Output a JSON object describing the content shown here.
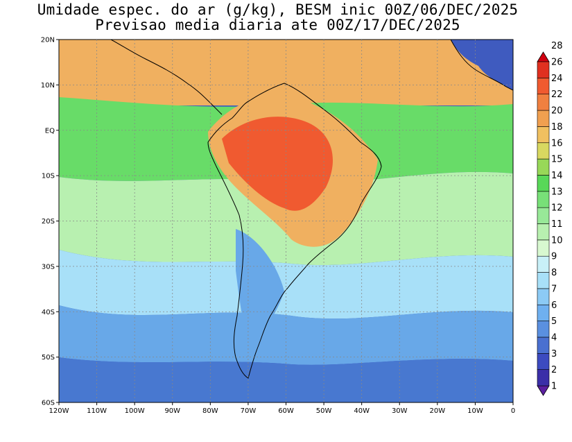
{
  "title_line1": "Umidade espec. do ar (g/kg), BESM inic 00Z/06/DEC/2025",
  "title_line2": "Previsao media diaria ate 00Z/17/DEC/2025",
  "lat_labels": [
    "20N",
    "10N",
    "EQ",
    "10S",
    "20S",
    "30S",
    "40S",
    "50S",
    "60S"
  ],
  "lon_labels": [
    "120W",
    "110W",
    "100W",
    "90W",
    "80W",
    "70W",
    "60W",
    "50W",
    "40W",
    "30W",
    "20W",
    "10W",
    "0"
  ],
  "colorbar": {
    "levels": [
      "1",
      "2",
      "3",
      "4",
      "5",
      "6",
      "7",
      "8",
      "9",
      "10",
      "11",
      "12",
      "13",
      "14",
      "15",
      "16",
      "18",
      "20",
      "22",
      "24",
      "26",
      "28"
    ],
    "colors": [
      "#5b1fa0",
      "#3b2fa8",
      "#3c4bc0",
      "#4a70d0",
      "#5a90e0",
      "#6fb0f0",
      "#8ccaf5",
      "#a8e0f8",
      "#c8f0f8",
      "#d8f8d0",
      "#b8f0b0",
      "#98e898",
      "#78e078",
      "#58d858",
      "#98d858",
      "#d8d860",
      "#f0c060",
      "#f0a050",
      "#f08040",
      "#f05a30",
      "#e03020",
      "#d00010"
    ]
  },
  "map_colors": {
    "ocean_south": "#4878d0",
    "ocean_far_south": "#3f5bbf",
    "ocean_mid": "#68a8e8",
    "ocean_light": "#a8e0f8",
    "subtropical": "#b8f0b0",
    "tropical_green": "#68dc68",
    "tropical_orange": "#f0b060",
    "amazon_red": "#f05a30",
    "coast": "#000000"
  }
}
